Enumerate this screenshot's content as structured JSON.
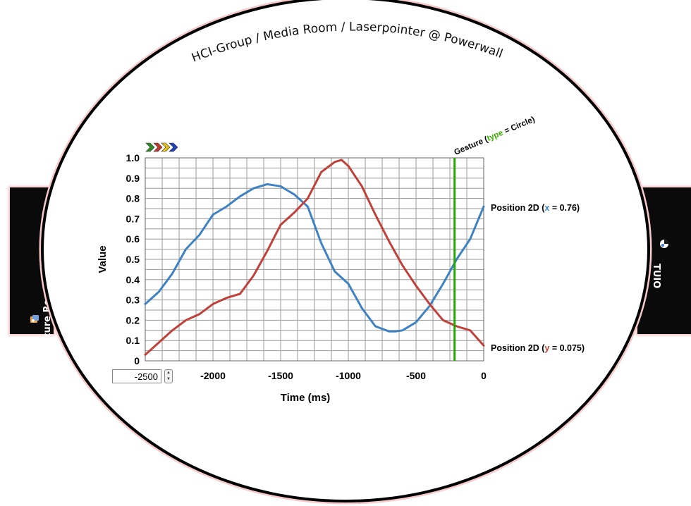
{
  "app": {
    "title": "HCI-Group / Media Room / Laserpointer @ Powerwall",
    "left_tab_label": "Gesture Recognizer",
    "right_tab_label": "TUIO",
    "left_tab_icon": "gesture-recognizer-icon",
    "right_tab_icon": "tuio-icon"
  },
  "status_indicators": [
    {
      "icon": "chevron-right-icon",
      "color": "#2e8b22"
    },
    {
      "icon": "chevron-right-icon",
      "color": "#c0392b"
    },
    {
      "icon": "chevron-right-icon",
      "color": "#e3c11b"
    },
    {
      "icon": "chevron-right-icon",
      "color": "#1f3fbf"
    }
  ],
  "time_range": {
    "value": "-2500",
    "stepper_up": "▲",
    "stepper_down": "▼"
  },
  "gesture_marker": {
    "prefix": "Gesture (",
    "key": "type",
    "eq": " = ",
    "value": "Circle",
    "suffix": ")",
    "time_ms": -215,
    "color": "#22a800",
    "key_color": "#39b000"
  },
  "colors": {
    "frame": "#000000",
    "glow": "#f7b9b9",
    "grid": "#999999",
    "x_series": "#3f82c4",
    "y_series": "#c0413a"
  },
  "chart_data": {
    "type": "line",
    "title": "",
    "xlabel": "Time (ms)",
    "ylabel": "Value",
    "xlim": [
      -2500,
      0
    ],
    "ylim": [
      0,
      1.0
    ],
    "grid": true,
    "x_ticks": [
      -2500,
      -2000,
      -1500,
      -1000,
      -500,
      0
    ],
    "x_tick_labels": [
      "-2000",
      "-1500",
      "-1000",
      "-500",
      "0"
    ],
    "y_ticks": [
      0,
      0.1,
      0.2,
      0.3,
      0.4,
      0.5,
      0.6,
      0.7,
      0.8,
      0.9,
      1.0
    ],
    "y_tick_labels": [
      "0",
      "0.1",
      "0.2",
      "0.3",
      "0.4",
      "0.5",
      "0.6",
      "0.7",
      "0.8",
      "0.9",
      "1.0"
    ],
    "series": [
      {
        "name": "Position 2D (x = 0.76)",
        "label_prefix": "Position 2D (",
        "label_key": "x",
        "label_rest": " = 0.76)",
        "color": "#3f82c4",
        "x": [
          -2500,
          -2400,
          -2300,
          -2200,
          -2100,
          -2000,
          -1900,
          -1800,
          -1700,
          -1600,
          -1500,
          -1450,
          -1400,
          -1300,
          -1200,
          -1100,
          -1000,
          -900,
          -800,
          -700,
          -650,
          -600,
          -500,
          -400,
          -300,
          -200,
          -100,
          0
        ],
        "y": [
          0.28,
          0.34,
          0.43,
          0.55,
          0.62,
          0.72,
          0.76,
          0.81,
          0.85,
          0.87,
          0.86,
          0.84,
          0.82,
          0.76,
          0.58,
          0.44,
          0.38,
          0.26,
          0.17,
          0.145,
          0.145,
          0.15,
          0.19,
          0.27,
          0.38,
          0.5,
          0.6,
          0.76
        ]
      },
      {
        "name": "Position 2D (y = 0.075)",
        "label_prefix": "Position 2D (",
        "label_key": "y",
        "label_rest": " = 0.075)",
        "color": "#c0413a",
        "x": [
          -2500,
          -2400,
          -2300,
          -2200,
          -2100,
          -2000,
          -1900,
          -1800,
          -1700,
          -1600,
          -1500,
          -1400,
          -1300,
          -1200,
          -1100,
          -1050,
          -1000,
          -900,
          -800,
          -700,
          -600,
          -500,
          -400,
          -300,
          -200,
          -100,
          0
        ],
        "y": [
          0.03,
          0.09,
          0.15,
          0.2,
          0.23,
          0.28,
          0.31,
          0.33,
          0.42,
          0.54,
          0.67,
          0.73,
          0.8,
          0.93,
          0.98,
          0.99,
          0.96,
          0.86,
          0.72,
          0.59,
          0.47,
          0.37,
          0.28,
          0.2,
          0.17,
          0.15,
          0.075
        ]
      }
    ]
  }
}
